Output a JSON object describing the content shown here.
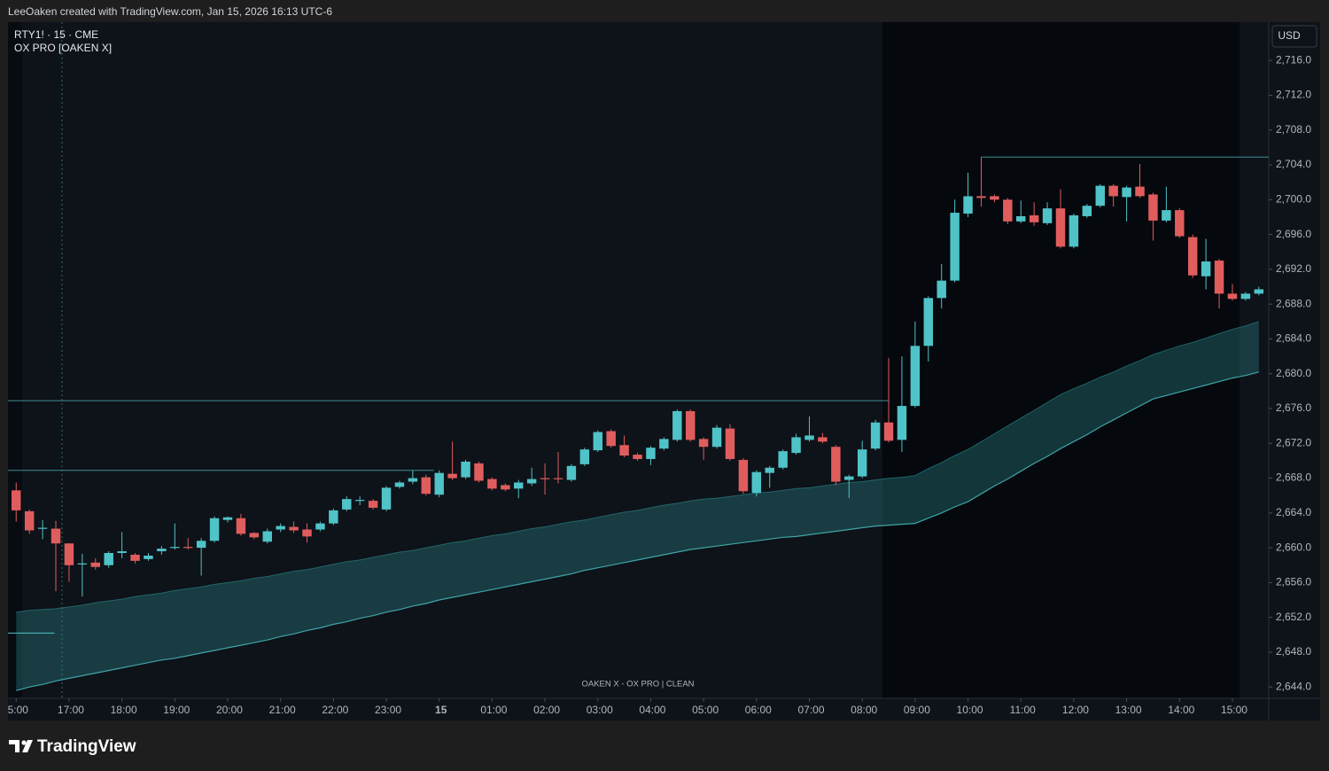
{
  "header": {
    "credit": "LeeOaken created with TradingView.com, Jan 15, 2026 16:13 UTC-6"
  },
  "chart_data": {
    "type": "candlestick",
    "title": "RTY1! · 15 · CME",
    "subtitle": "OX PRO [OAKEN X]",
    "watermark": "OAKEN X - OX PRO | CLEAN",
    "currency": "USD",
    "up_color": "#4fc3c7",
    "down_color": "#e05d5d",
    "open": [
      2666.6,
      2664.2,
      2662.2,
      2662.2,
      2660.5,
      2658.1,
      2658.3,
      2658.0,
      2659.4,
      2659.2,
      2658.7,
      2659.6,
      2660.0,
      2660.1,
      2660.0,
      2660.8,
      2663.2,
      2663.4,
      2661.7,
      2660.7,
      2662.1,
      2662.4,
      2662.1,
      2662.1,
      2662.8,
      2664.4,
      2665.4,
      2665.4,
      2664.4,
      2667.0,
      2667.6,
      2668.1,
      2666.1,
      2668.5,
      2668.1,
      2669.7,
      2667.9,
      2667.2,
      2666.8,
      2667.4,
      2668.0,
      2668.0,
      2667.8,
      2669.6,
      2671.2,
      2673.4,
      2671.8,
      2670.7,
      2670.2,
      2671.4,
      2672.4,
      2675.7,
      2672.5,
      2671.6,
      2673.7,
      2670.1,
      2666.3,
      2668.6,
      2669.2,
      2670.9,
      2672.4,
      2672.7,
      2671.6,
      2667.8,
      2668.2,
      2671.4,
      2674.4,
      2672.4,
      2676.3,
      2683.2,
      2688.7,
      2690.7,
      2698.4,
      2700.4,
      2700.4,
      2700.0,
      2697.5,
      2698.2,
      2697.3,
      2699.0,
      2694.6,
      2698.1,
      2699.3,
      2701.6,
      2700.3,
      2701.5,
      2700.6,
      2697.6,
      2698.8,
      2695.7,
      2691.2,
      2693.0,
      2689.2,
      2688.6,
      2689.2
    ],
    "high": [
      2667.5,
      2664.4,
      2663.2,
      2663.1,
      2660.5,
      2659.3,
      2658.8,
      2659.6,
      2661.8,
      2659.4,
      2659.4,
      2660.2,
      2662.8,
      2661.1,
      2661.1,
      2663.6,
      2663.6,
      2663.9,
      2661.8,
      2662.2,
      2662.8,
      2663.0,
      2662.8,
      2663.0,
      2664.5,
      2665.9,
      2665.9,
      2665.6,
      2667.1,
      2667.7,
      2668.9,
      2668.4,
      2668.9,
      2672.2,
      2670.1,
      2669.9,
      2668.1,
      2667.4,
      2667.8,
      2669.2,
      2669.7,
      2671.0,
      2669.6,
      2671.5,
      2673.5,
      2673.6,
      2672.9,
      2670.9,
      2671.7,
      2672.7,
      2675.9,
      2675.9,
      2672.7,
      2674.1,
      2674.2,
      2670.3,
      2668.9,
      2669.4,
      2671.3,
      2673.1,
      2675.1,
      2673.2,
      2671.8,
      2668.4,
      2672.3,
      2674.7,
      2681.8,
      2682.0,
      2686.0,
      2688.9,
      2692.6,
      2700.0,
      2703.1,
      2704.9,
      2700.6,
      2700.2,
      2699.9,
      2699.7,
      2699.7,
      2701.2,
      2698.4,
      2699.5,
      2701.8,
      2701.8,
      2701.6,
      2704.1,
      2700.8,
      2701.5,
      2699.0,
      2696.0,
      2695.5,
      2693.2,
      2690.3,
      2689.4,
      2690.0
    ],
    "low": [
      2663.0,
      2661.6,
      2661.0,
      2655.0,
      2656.1,
      2654.4,
      2657.5,
      2657.7,
      2658.8,
      2658.2,
      2658.5,
      2659.2,
      2659.8,
      2659.8,
      2656.8,
      2660.6,
      2662.9,
      2661.4,
      2661.0,
      2660.5,
      2661.8,
      2661.7,
      2660.6,
      2661.9,
      2662.6,
      2664.2,
      2664.9,
      2664.4,
      2664.2,
      2666.8,
      2667.3,
      2666.0,
      2665.8,
      2667.8,
      2667.9,
      2667.5,
      2666.6,
      2666.5,
      2665.7,
      2667.1,
      2666.1,
      2667.4,
      2667.6,
      2669.4,
      2671.0,
      2671.5,
      2670.4,
      2670.0,
      2669.5,
      2671.2,
      2672.2,
      2672.2,
      2670.1,
      2671.4,
      2670.0,
      2666.2,
      2665.9,
      2666.9,
      2669.0,
      2670.7,
      2672.2,
      2672.0,
      2667.2,
      2665.7,
      2668.0,
      2671.2,
      2672.1,
      2671.0,
      2676.1,
      2681.4,
      2687.5,
      2690.5,
      2698.0,
      2699.2,
      2699.7,
      2697.2,
      2697.3,
      2697.0,
      2697.1,
      2694.4,
      2694.4,
      2697.9,
      2699.1,
      2699.2,
      2697.5,
      2700.2,
      2695.3,
      2697.4,
      2695.6,
      2691.0,
      2689.7,
      2687.5,
      2688.4,
      2688.4,
      2689.0
    ],
    "close": [
      2664.3,
      2662.0,
      2662.3,
      2660.5,
      2658.0,
      2658.2,
      2657.8,
      2659.4,
      2659.6,
      2658.5,
      2659.1,
      2659.9,
      2660.1,
      2660.0,
      2660.8,
      2663.4,
      2663.5,
      2661.6,
      2661.2,
      2661.9,
      2662.5,
      2662.0,
      2661.3,
      2662.8,
      2664.3,
      2665.6,
      2665.5,
      2664.6,
      2666.9,
      2667.5,
      2668.0,
      2666.2,
      2668.6,
      2668.0,
      2669.9,
      2667.7,
      2666.8,
      2666.7,
      2667.5,
      2667.9,
      2667.9,
      2667.9,
      2669.4,
      2671.3,
      2673.3,
      2671.7,
      2670.6,
      2670.2,
      2671.5,
      2672.5,
      2675.7,
      2672.4,
      2671.6,
      2673.8,
      2670.2,
      2666.5,
      2668.7,
      2669.2,
      2671.1,
      2672.7,
      2672.9,
      2672.2,
      2667.6,
      2668.2,
      2671.3,
      2674.4,
      2672.3,
      2676.3,
      2683.2,
      2688.7,
      2690.7,
      2698.5,
      2700.4,
      2700.2,
      2700.0,
      2697.5,
      2698.1,
      2697.4,
      2699.0,
      2694.6,
      2698.2,
      2699.3,
      2701.6,
      2700.4,
      2701.4,
      2700.4,
      2697.6,
      2698.8,
      2695.8,
      2691.3,
      2692.9,
      2689.2,
      2688.6,
      2689.2,
      2689.7
    ],
    "band": {
      "color": "#2c8c8e",
      "upper": [
        2652.6,
        2652.8,
        2652.9,
        2653.0,
        2653.2,
        2653.4,
        2653.7,
        2653.9,
        2654.1,
        2654.4,
        2654.6,
        2654.8,
        2655.1,
        2655.3,
        2655.5,
        2655.8,
        2656.0,
        2656.2,
        2656.5,
        2656.7,
        2657.0,
        2657.3,
        2657.5,
        2657.8,
        2658.1,
        2658.4,
        2658.6,
        2658.9,
        2659.2,
        2659.5,
        2659.7,
        2660.0,
        2660.3,
        2660.6,
        2660.8,
        2661.1,
        2661.4,
        2661.6,
        2661.9,
        2662.2,
        2662.4,
        2662.7,
        2663.0,
        2663.2,
        2663.5,
        2663.8,
        2664.1,
        2664.3,
        2664.6,
        2664.9,
        2665.1,
        2665.4,
        2665.6,
        2665.7,
        2665.9,
        2666.1,
        2666.3,
        2666.4,
        2666.6,
        2666.8,
        2666.9,
        2667.1,
        2667.3,
        2667.5,
        2667.6,
        2667.8,
        2668.0,
        2668.1,
        2668.3,
        2669.1,
        2669.8,
        2670.6,
        2671.3,
        2672.2,
        2673.1,
        2674.0,
        2674.9,
        2675.8,
        2676.7,
        2677.6,
        2678.3,
        2678.9,
        2679.6,
        2680.2,
        2680.9,
        2681.5,
        2682.2,
        2682.7,
        2683.2,
        2683.6,
        2684.1,
        2684.6,
        2685.1,
        2685.5,
        2686.0
      ],
      "lower": [
        2643.6,
        2644.0,
        2644.3,
        2644.7,
        2645.0,
        2645.3,
        2645.6,
        2645.9,
        2646.2,
        2646.5,
        2646.8,
        2647.1,
        2647.3,
        2647.6,
        2647.9,
        2648.2,
        2648.5,
        2648.8,
        2649.1,
        2649.4,
        2649.8,
        2650.1,
        2650.5,
        2650.8,
        2651.2,
        2651.5,
        2651.9,
        2652.2,
        2652.6,
        2652.9,
        2653.3,
        2653.6,
        2654.0,
        2654.3,
        2654.6,
        2654.9,
        2655.2,
        2655.5,
        2655.8,
        2656.1,
        2656.4,
        2656.7,
        2657.0,
        2657.4,
        2657.7,
        2658.0,
        2658.3,
        2658.6,
        2658.9,
        2659.2,
        2659.5,
        2659.8,
        2660.0,
        2660.2,
        2660.4,
        2660.6,
        2660.8,
        2661.0,
        2661.2,
        2661.3,
        2661.5,
        2661.7,
        2661.9,
        2662.1,
        2662.3,
        2662.5,
        2662.6,
        2662.7,
        2662.8,
        2663.4,
        2664.0,
        2664.7,
        2665.3,
        2666.2,
        2667.1,
        2667.9,
        2668.8,
        2669.7,
        2670.5,
        2671.4,
        2672.2,
        2673.0,
        2673.9,
        2674.7,
        2675.5,
        2676.3,
        2677.1,
        2677.5,
        2677.9,
        2678.3,
        2678.7,
        2679.1,
        2679.5,
        2679.8,
        2680.2
      ]
    },
    "levels": [
      {
        "value": 2676.9,
        "from": -0.62,
        "to": 66,
        "color": "#3e8f92"
      },
      {
        "value": 2668.9,
        "from": -0.62,
        "to": 31.6,
        "color": "#3e8f92"
      },
      {
        "value": 2650.2,
        "from": -0.62,
        "to": 2.9,
        "color": "#4fc3c7"
      },
      {
        "value": 2704.9,
        "from": 73,
        "to": 94.75,
        "color": "#3e8f92"
      }
    ],
    "xlim": [
      -0.62,
      94.75
    ],
    "ylim": [
      2642.7,
      2720.4
    ],
    "yticks": [
      {
        "value": 2644,
        "label": "2,644.0"
      },
      {
        "value": 2648,
        "label": "2,648.0"
      },
      {
        "value": 2652,
        "label": "2,652.0"
      },
      {
        "value": 2656,
        "label": "2,656.0"
      },
      {
        "value": 2660,
        "label": "2,660.0"
      },
      {
        "value": 2664,
        "label": "2,664.0"
      },
      {
        "value": 2668,
        "label": "2,668.0"
      },
      {
        "value": 2672,
        "label": "2,672.0"
      },
      {
        "value": 2676,
        "label": "2,676.0"
      },
      {
        "value": 2680,
        "label": "2,680.0"
      },
      {
        "value": 2684,
        "label": "2,684.0"
      },
      {
        "value": 2688,
        "label": "2,688.0"
      },
      {
        "value": 2692,
        "label": "2,692.0"
      },
      {
        "value": 2696,
        "label": "2,696.0"
      },
      {
        "value": 2700,
        "label": "2,700.0"
      },
      {
        "value": 2704,
        "label": "2,704.0"
      },
      {
        "value": 2708,
        "label": "2,708.0"
      },
      {
        "value": 2712,
        "label": "2,712.0"
      },
      {
        "value": 2716,
        "label": "2,716.0"
      }
    ],
    "xticks": [
      {
        "value": 0,
        "label": "5:00"
      },
      {
        "value": 4,
        "label": "17:00"
      },
      {
        "value": 8,
        "label": "18:00"
      },
      {
        "value": 12,
        "label": "19:00"
      },
      {
        "value": 16,
        "label": "20:00"
      },
      {
        "value": 20,
        "label": "21:00"
      },
      {
        "value": 24,
        "label": "22:00"
      },
      {
        "value": 28,
        "label": "23:00"
      },
      {
        "value": 32,
        "label": "15"
      },
      {
        "value": 36,
        "label": "01:00"
      },
      {
        "value": 40,
        "label": "02:00"
      },
      {
        "value": 44,
        "label": "03:00"
      },
      {
        "value": 48,
        "label": "04:00"
      },
      {
        "value": 52,
        "label": "05:00"
      },
      {
        "value": 56,
        "label": "06:00"
      },
      {
        "value": 60,
        "label": "07:00"
      },
      {
        "value": 64,
        "label": "08:00"
      },
      {
        "value": 68,
        "label": "09:00"
      },
      {
        "value": 72,
        "label": "10:00"
      },
      {
        "value": 76,
        "label": "11:00"
      },
      {
        "value": 80,
        "label": "12:00"
      },
      {
        "value": 84,
        "label": "13:00"
      },
      {
        "value": 88,
        "label": "14:00"
      },
      {
        "value": 92,
        "label": "15:00"
      }
    ]
  },
  "footer": {
    "brand": "TradingView"
  }
}
